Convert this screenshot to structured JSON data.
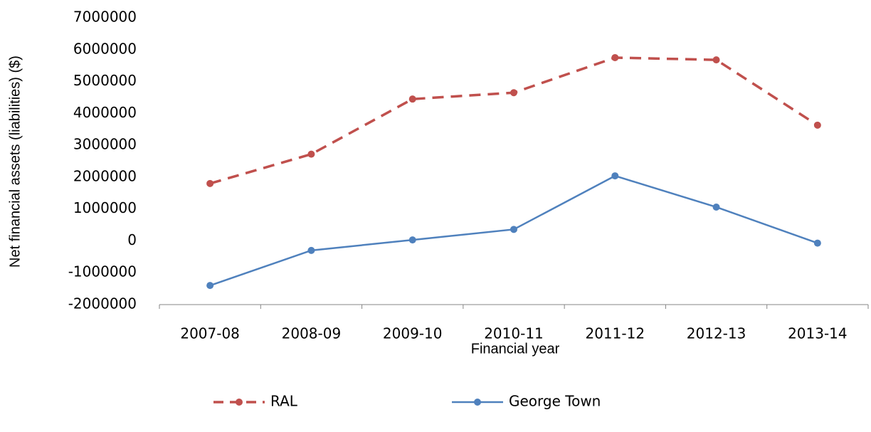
{
  "chart_data": {
    "type": "line",
    "x_label": "Financial year",
    "y_label": "Net financial assets (liabilities) ($)",
    "categories": [
      "2007-08",
      "2008-09",
      "2009-10",
      "2010-11",
      "2011-12",
      "2012-13",
      "2013-14"
    ],
    "series": [
      {
        "name": "RAL",
        "color": "#c0504d",
        "dash": true,
        "values": [
          1800000,
          2720000,
          4450000,
          4650000,
          5750000,
          5680000,
          3630000
        ]
      },
      {
        "name": "George Town",
        "color": "#4f81bd",
        "dash": false,
        "values": [
          -1400000,
          -300000,
          30000,
          360000,
          2040000,
          1060000,
          -70000
        ]
      }
    ],
    "ylim": [
      -2000000,
      7000000
    ],
    "yticks": [
      -2000000,
      -1000000,
      0,
      1000000,
      2000000,
      3000000,
      4000000,
      5000000,
      6000000,
      7000000
    ],
    "grid": false
  }
}
